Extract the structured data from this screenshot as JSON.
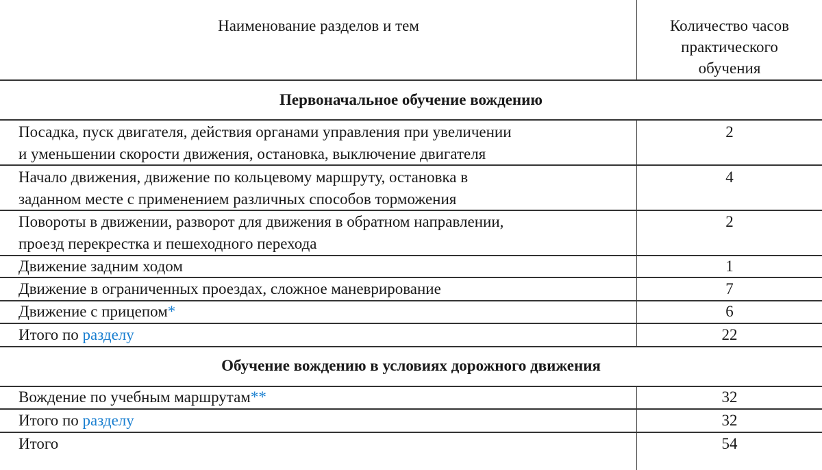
{
  "header": {
    "col_name": "Наименование разделов и тем",
    "col_hours": "Количество часов практического обучения",
    "col_hours_lines": [
      "Количество часов",
      "практического",
      "обучения"
    ]
  },
  "sections": [
    {
      "title": "Первоначальное обучение вождению",
      "rows": [
        {
          "lines": [
            "Посадка, пуск двигателя, действия органами управления при увеличении",
            "и уменьшении скорости движения, остановка, выключение двигателя"
          ],
          "hours": "2"
        },
        {
          "lines": [
            "Начало движения, движение по кольцевому маршруту, остановка в",
            "заданном месте с применением различных способов торможения"
          ],
          "hours": "4"
        },
        {
          "lines": [
            "Повороты в движении, разворот для движения в обратном направлении,",
            "проезд перекрестка и пешеходного перехода"
          ],
          "hours": "2"
        },
        {
          "text": "Движение задним ходом",
          "hours": "1"
        },
        {
          "text": "Движение в ограниченных проездах, сложное маневрирование",
          "hours": "7"
        },
        {
          "text": "Движение с прицепом",
          "mark": "*",
          "hours": "6"
        }
      ],
      "total": {
        "prefix": "Итого по ",
        "link": "разделу",
        "hours": "22"
      }
    },
    {
      "title": "Обучение вождению в условиях дорожного движения",
      "rows": [
        {
          "text": "Вождение по учебным маршрутам",
          "mark": "**",
          "hours": "32"
        }
      ],
      "total": {
        "prefix": "Итого по ",
        "link": "разделу",
        "hours": "32"
      }
    }
  ],
  "grand_total": {
    "label": "Итого",
    "hours": "54"
  },
  "colors": {
    "link": "#1a7fd0",
    "text": "#1a1a1a"
  }
}
